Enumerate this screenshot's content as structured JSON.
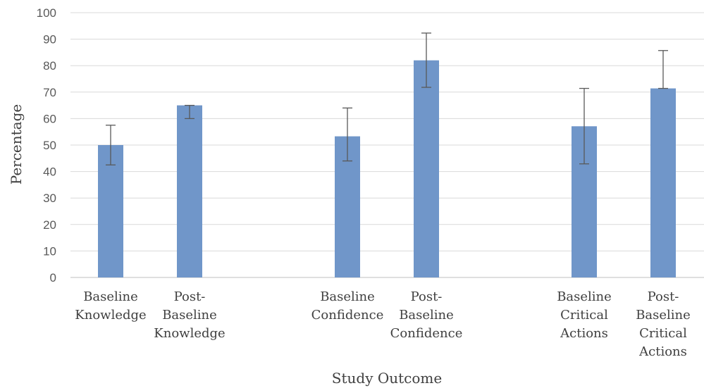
{
  "chart_data": {
    "type": "bar",
    "categories": [
      [
        "Baseline",
        "Knowledge"
      ],
      [
        "Post-",
        "Baseline",
        "Knowledge"
      ],
      [
        "Baseline",
        "Confidence"
      ],
      [
        "Post-",
        "Baseline",
        "Confidence"
      ],
      [
        "Baseline",
        "Critical",
        "Actions"
      ],
      [
        "Post-",
        "Baseline",
        "Critical",
        "Actions"
      ]
    ],
    "values": [
      50,
      65,
      53.3,
      82,
      57.1,
      71.4
    ],
    "error_low": [
      42.5,
      60,
      44,
      71.8,
      42.9,
      71.4
    ],
    "error_high": [
      57.5,
      65,
      64,
      92.3,
      71.4,
      85.7
    ],
    "xlabel": "Study Outcome",
    "ylabel": "Percentage",
    "ylim": [
      0,
      100
    ],
    "yticks": [
      0,
      10,
      20,
      30,
      40,
      50,
      60,
      70,
      80,
      90,
      100
    ],
    "grid": true,
    "colors": {
      "bar": "#7096c9",
      "grid": "#d9d9d9",
      "errorbar": "#595959"
    }
  }
}
